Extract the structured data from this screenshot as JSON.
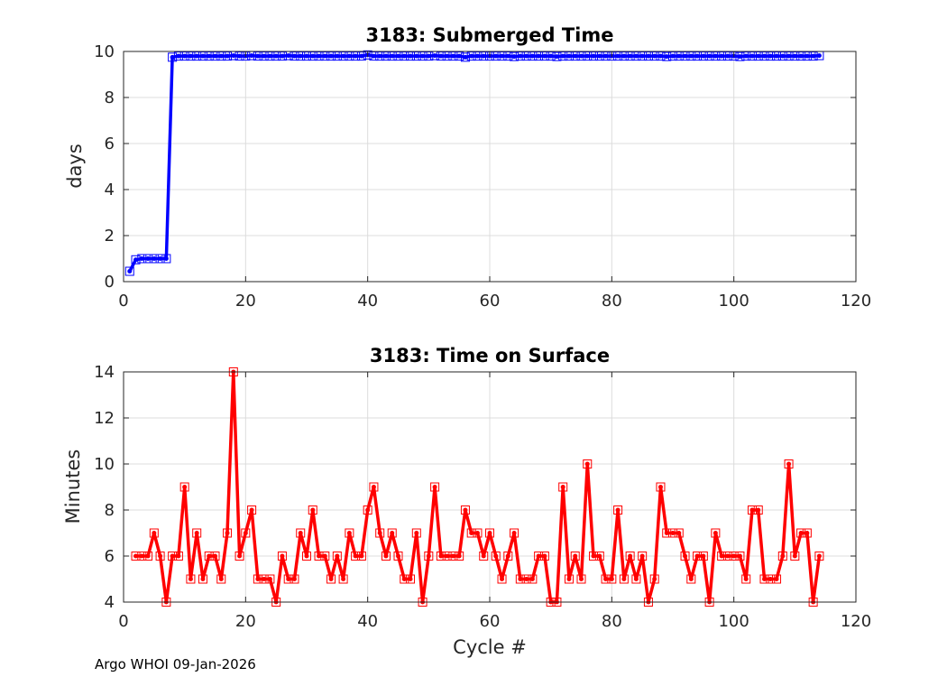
{
  "chart_data": [
    {
      "type": "line",
      "title": "3183: Submerged Time",
      "xlabel": "",
      "ylabel": "days",
      "xlim": [
        0,
        120
      ],
      "ylim": [
        0,
        10
      ],
      "xticks": [
        0,
        20,
        40,
        60,
        80,
        100,
        120
      ],
      "yticks": [
        0,
        2,
        4,
        6,
        8,
        10
      ],
      "grid": true,
      "color": "#0000ff",
      "marker": "square",
      "x": [
        1,
        2,
        3,
        4,
        5,
        6,
        7,
        8,
        9,
        10,
        11,
        12,
        13,
        14,
        15,
        16,
        17,
        18,
        19,
        20,
        21,
        22,
        23,
        24,
        25,
        26,
        27,
        28,
        29,
        30,
        31,
        32,
        33,
        34,
        35,
        36,
        37,
        38,
        39,
        40,
        41,
        42,
        43,
        44,
        45,
        46,
        47,
        48,
        49,
        50,
        51,
        52,
        53,
        54,
        55,
        56,
        57,
        58,
        59,
        60,
        61,
        62,
        63,
        64,
        65,
        66,
        67,
        68,
        69,
        70,
        71,
        72,
        73,
        74,
        75,
        76,
        77,
        78,
        79,
        80,
        81,
        82,
        83,
        84,
        85,
        86,
        87,
        88,
        89,
        90,
        91,
        92,
        93,
        94,
        95,
        96,
        97,
        98,
        99,
        100,
        101,
        102,
        103,
        104,
        105,
        106,
        107,
        108,
        109,
        110,
        111,
        112,
        113,
        114
      ],
      "values": [
        0.45,
        0.95,
        1.0,
        1.0,
        1.0,
        1.0,
        1.0,
        9.75,
        9.8,
        9.8,
        9.8,
        9.8,
        9.8,
        9.8,
        9.8,
        9.8,
        9.8,
        9.82,
        9.8,
        9.8,
        9.82,
        9.8,
        9.8,
        9.8,
        9.8,
        9.8,
        9.82,
        9.8,
        9.8,
        9.8,
        9.8,
        9.8,
        9.8,
        9.8,
        9.8,
        9.8,
        9.8,
        9.8,
        9.8,
        9.85,
        9.8,
        9.8,
        9.8,
        9.8,
        9.8,
        9.8,
        9.8,
        9.8,
        9.8,
        9.8,
        9.82,
        9.8,
        9.8,
        9.8,
        9.8,
        9.75,
        9.8,
        9.8,
        9.8,
        9.8,
        9.8,
        9.8,
        9.8,
        9.78,
        9.8,
        9.8,
        9.8,
        9.8,
        9.8,
        9.8,
        9.78,
        9.8,
        9.8,
        9.8,
        9.8,
        9.8,
        9.8,
        9.8,
        9.8,
        9.8,
        9.8,
        9.8,
        9.8,
        9.8,
        9.8,
        9.8,
        9.8,
        9.8,
        9.78,
        9.8,
        9.8,
        9.8,
        9.8,
        9.8,
        9.8,
        9.8,
        9.8,
        9.8,
        9.8,
        9.8,
        9.78,
        9.8,
        9.8,
        9.8,
        9.8,
        9.8,
        9.8,
        9.8,
        9.8,
        9.8,
        9.8,
        9.8,
        9.8,
        9.82
      ]
    },
    {
      "type": "line",
      "title": "3183: Time on Surface",
      "xlabel": "Cycle #",
      "ylabel": "Minutes",
      "xlim": [
        0,
        120
      ],
      "ylim": [
        4,
        14
      ],
      "xticks": [
        0,
        20,
        40,
        60,
        80,
        100,
        120
      ],
      "yticks": [
        4,
        6,
        8,
        10,
        12,
        14
      ],
      "grid": true,
      "color": "#ff0000",
      "marker": "square",
      "x": [
        2,
        3,
        4,
        5,
        6,
        7,
        8,
        9,
        10,
        11,
        12,
        13,
        14,
        15,
        16,
        17,
        18,
        19,
        20,
        21,
        22,
        23,
        24,
        25,
        26,
        27,
        28,
        29,
        30,
        31,
        32,
        33,
        34,
        35,
        36,
        37,
        38,
        39,
        40,
        41,
        42,
        43,
        44,
        45,
        46,
        47,
        48,
        49,
        50,
        51,
        52,
        53,
        54,
        55,
        56,
        57,
        58,
        59,
        60,
        61,
        62,
        63,
        64,
        65,
        66,
        67,
        68,
        69,
        70,
        71,
        72,
        73,
        74,
        75,
        76,
        77,
        78,
        79,
        80,
        81,
        82,
        83,
        84,
        85,
        86,
        87,
        88,
        89,
        90,
        91,
        92,
        93,
        94,
        95,
        96,
        97,
        98,
        99,
        100,
        101,
        102,
        103,
        104,
        105,
        106,
        107,
        108,
        109,
        110,
        111,
        112,
        113,
        114
      ],
      "values": [
        6,
        6,
        6,
        7,
        6,
        4,
        6,
        6,
        9,
        5,
        7,
        5,
        6,
        6,
        5,
        7,
        14,
        6,
        7,
        8,
        5,
        5,
        5,
        4,
        6,
        5,
        5,
        7,
        6,
        8,
        6,
        6,
        5,
        6,
        5,
        7,
        6,
        6,
        8,
        9,
        7,
        6,
        7,
        6,
        5,
        5,
        7,
        4,
        6,
        9,
        6,
        6,
        6,
        6,
        8,
        7,
        7,
        6,
        7,
        6,
        5,
        6,
        7,
        5,
        5,
        5,
        6,
        6,
        4,
        4,
        9,
        5,
        6,
        5,
        10,
        6,
        6,
        5,
        5,
        8,
        5,
        6,
        5,
        6,
        4,
        5,
        9,
        7,
        7,
        7,
        6,
        5,
        6,
        6,
        4,
        7,
        6,
        6,
        6,
        6,
        5,
        8,
        8,
        5,
        5,
        5,
        6,
        10,
        6,
        7,
        7,
        4,
        6
      ]
    }
  ],
  "footer": "Argo WHOI 09-Jan-2026"
}
